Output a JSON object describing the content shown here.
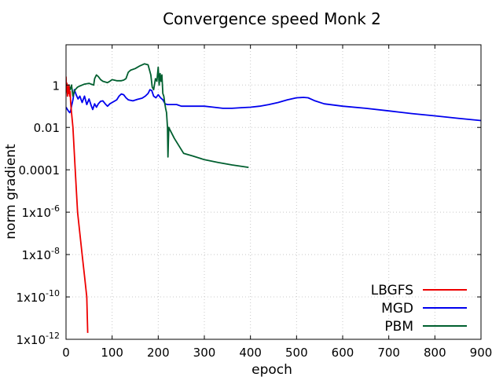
{
  "chart_data": {
    "type": "line",
    "title": "Convergence speed Monk 2",
    "xlabel": "epoch",
    "ylabel": "norm gradient",
    "xlim": [
      0,
      900
    ],
    "ylim_log10": [
      -12,
      1.9
    ],
    "y_scale": "log",
    "grid": true,
    "legend_position": "bottom-right",
    "x_ticks": [
      0,
      100,
      200,
      300,
      400,
      500,
      600,
      700,
      800,
      900
    ],
    "x_tick_labels": [
      "0",
      "100",
      "200",
      "300",
      "400",
      "500",
      "600",
      "700",
      "800",
      "900"
    ],
    "y_ticks": [
      {
        "value": "1",
        "label": "1"
      },
      {
        "value": "0.01",
        "label": "0.01"
      },
      {
        "value": "0.0001",
        "label": "0.0001"
      },
      {
        "value": "1e-6",
        "label": "1x10",
        "exp": "-6"
      },
      {
        "value": "1e-8",
        "label": "1x10",
        "exp": "-8"
      },
      {
        "value": "1e-10",
        "label": "1x10",
        "exp": "-10"
      },
      {
        "value": "1e-12",
        "label": "1x10",
        "exp": "-12"
      }
    ],
    "series": [
      {
        "name": "LBGFS",
        "color": "#ee0000",
        "points": [
          [
            0,
            2.5
          ],
          [
            1,
            0.5
          ],
          [
            2,
            1.2
          ],
          [
            3,
            0.3
          ],
          [
            4,
            0.8
          ],
          [
            5,
            0.4
          ],
          [
            6,
            1.0
          ],
          [
            8,
            0.3
          ],
          [
            9,
            0.5
          ],
          [
            10,
            0.15
          ],
          [
            12,
            0.05
          ],
          [
            15,
            0.01
          ],
          [
            20,
            0.0001
          ],
          [
            25,
            1e-06
          ],
          [
            30,
            1e-07
          ],
          [
            35,
            1e-08
          ],
          [
            40,
            1e-09
          ],
          [
            45,
            1e-10
          ],
          [
            47,
            2e-12
          ]
        ]
      },
      {
        "name": "MGD",
        "color": "#0000ee",
        "points": [
          [
            0,
            0.09
          ],
          [
            5,
            0.06
          ],
          [
            8,
            0.05
          ],
          [
            10,
            0.06
          ],
          [
            12,
            0.1
          ],
          [
            15,
            0.2
          ],
          [
            18,
            0.6
          ],
          [
            22,
            0.35
          ],
          [
            26,
            0.22
          ],
          [
            30,
            0.3
          ],
          [
            35,
            0.15
          ],
          [
            40,
            0.3
          ],
          [
            45,
            0.12
          ],
          [
            50,
            0.22
          ],
          [
            55,
            0.1
          ],
          [
            58,
            0.07
          ],
          [
            62,
            0.13
          ],
          [
            66,
            0.09
          ],
          [
            70,
            0.13
          ],
          [
            75,
            0.17
          ],
          [
            80,
            0.18
          ],
          [
            85,
            0.13
          ],
          [
            90,
            0.1
          ],
          [
            95,
            0.13
          ],
          [
            100,
            0.15
          ],
          [
            110,
            0.2
          ],
          [
            115,
            0.3
          ],
          [
            120,
            0.38
          ],
          [
            125,
            0.35
          ],
          [
            130,
            0.25
          ],
          [
            135,
            0.2
          ],
          [
            145,
            0.18
          ],
          [
            155,
            0.21
          ],
          [
            165,
            0.24
          ],
          [
            172,
            0.3
          ],
          [
            178,
            0.4
          ],
          [
            182,
            0.6
          ],
          [
            186,
            0.55
          ],
          [
            190,
            0.3
          ],
          [
            195,
            0.25
          ],
          [
            200,
            0.35
          ],
          [
            205,
            0.25
          ],
          [
            210,
            0.2
          ],
          [
            215,
            0.13
          ],
          [
            220,
            0.12
          ],
          [
            230,
            0.12
          ],
          [
            240,
            0.12
          ],
          [
            250,
            0.1
          ],
          [
            260,
            0.1
          ],
          [
            280,
            0.1
          ],
          [
            300,
            0.1
          ],
          [
            320,
            0.09
          ],
          [
            340,
            0.08
          ],
          [
            360,
            0.08
          ],
          [
            380,
            0.085
          ],
          [
            400,
            0.09
          ],
          [
            420,
            0.1
          ],
          [
            440,
            0.12
          ],
          [
            460,
            0.15
          ],
          [
            480,
            0.2
          ],
          [
            500,
            0.25
          ],
          [
            515,
            0.26
          ],
          [
            525,
            0.25
          ],
          [
            540,
            0.18
          ],
          [
            560,
            0.13
          ],
          [
            600,
            0.1
          ],
          [
            650,
            0.08
          ],
          [
            700,
            0.06
          ],
          [
            750,
            0.045
          ],
          [
            800,
            0.035
          ],
          [
            850,
            0.027
          ],
          [
            900,
            0.021
          ]
        ]
      },
      {
        "name": "PBM",
        "color": "#005f2f",
        "points": [
          [
            0,
            1.0
          ],
          [
            3,
            0.4
          ],
          [
            6,
            1.0
          ],
          [
            9,
            0.6
          ],
          [
            12,
            1.0
          ],
          [
            15,
            0.3
          ],
          [
            18,
            0.5
          ],
          [
            20,
            0.6
          ],
          [
            25,
            0.8
          ],
          [
            30,
            0.9
          ],
          [
            35,
            1.0
          ],
          [
            40,
            1.1
          ],
          [
            50,
            1.2
          ],
          [
            60,
            1.0
          ],
          [
            62,
            2.0
          ],
          [
            66,
            3.0
          ],
          [
            70,
            2.5
          ],
          [
            75,
            1.8
          ],
          [
            80,
            1.5
          ],
          [
            90,
            1.3
          ],
          [
            95,
            1.5
          ],
          [
            100,
            1.8
          ],
          [
            110,
            1.6
          ],
          [
            120,
            1.6
          ],
          [
            125,
            1.7
          ],
          [
            130,
            2.0
          ],
          [
            135,
            4.0
          ],
          [
            140,
            5.0
          ],
          [
            150,
            6.0
          ],
          [
            160,
            8.0
          ],
          [
            170,
            10.0
          ],
          [
            178,
            9.0
          ],
          [
            184,
            3.0
          ],
          [
            187,
            0.8
          ],
          [
            190,
            0.6
          ],
          [
            194,
            2.0
          ],
          [
            197,
            1.5
          ],
          [
            200,
            7.0
          ],
          [
            202,
            1.0
          ],
          [
            204,
            3.5
          ],
          [
            206,
            1.5
          ],
          [
            208,
            3.0
          ],
          [
            210,
            0.4
          ],
          [
            212,
            0.3
          ],
          [
            214,
            0.15
          ],
          [
            216,
            0.08
          ],
          [
            218,
            0.05
          ],
          [
            220,
            0.01
          ],
          [
            221,
            0.0004
          ],
          [
            222,
            0.002
          ],
          [
            223,
            0.01
          ],
          [
            225,
            0.008
          ],
          [
            235,
            0.003
          ],
          [
            255,
            0.0006
          ],
          [
            275,
            0.00045
          ],
          [
            300,
            0.0003
          ],
          [
            330,
            0.00022
          ],
          [
            360,
            0.00017
          ],
          [
            396,
            0.00013
          ]
        ]
      }
    ]
  }
}
